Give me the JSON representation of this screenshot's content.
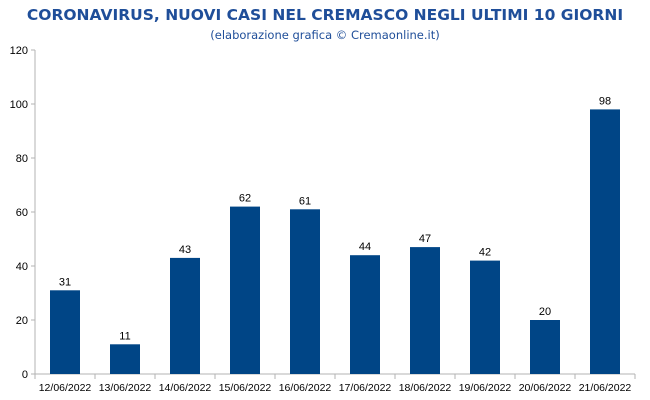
{
  "title": "CORONAVIRUS, NUOVI CASI NEL CREMASCO NEGLI ULTIMI 10 GIORNI",
  "subtitle": "(elaborazione grafica © Cremaonline.it)",
  "colors": {
    "title": "#1f4e99",
    "bar": "#004586",
    "axis": "#b3b3b3"
  },
  "chart_data": {
    "type": "bar",
    "title": "CORONAVIRUS, NUOVI CASI NEL CREMASCO NEGLI ULTIMI 10 GIORNI",
    "subtitle": "(elaborazione grafica © Cremaonline.it)",
    "categories": [
      "12/06/2022",
      "13/06/2022",
      "14/06/2022",
      "15/06/2022",
      "16/06/2022",
      "17/06/2022",
      "18/06/2022",
      "19/06/2022",
      "20/06/2022",
      "21/06/2022"
    ],
    "values": [
      31,
      11,
      43,
      62,
      61,
      44,
      47,
      42,
      20,
      98
    ],
    "ylim": [
      0,
      120
    ],
    "yticks": [
      0,
      20,
      40,
      60,
      80,
      100,
      120
    ],
    "grid": false,
    "legend": "none",
    "data_labels": true
  }
}
